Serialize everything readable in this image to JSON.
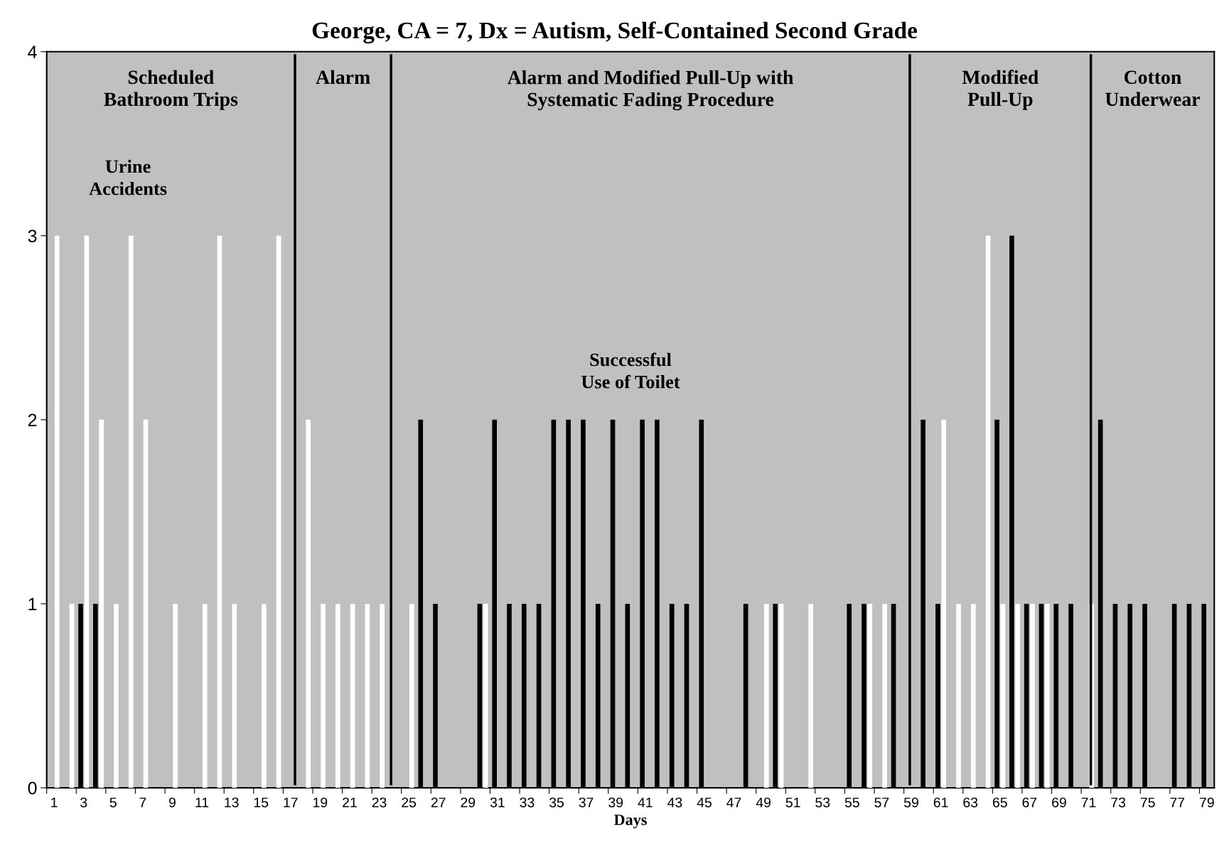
{
  "chart_data": {
    "type": "bar",
    "title": "George, CA = 7, Dx = Autism, Self-Contained Second Grade",
    "xlabel": "Days",
    "x": [
      1,
      2,
      3,
      4,
      5,
      6,
      7,
      8,
      9,
      10,
      11,
      12,
      13,
      14,
      15,
      16,
      17,
      18,
      19,
      20,
      21,
      22,
      23,
      24,
      25,
      26,
      27,
      28,
      29,
      30,
      31,
      32,
      33,
      34,
      35,
      36,
      37,
      38,
      39,
      40,
      41,
      42,
      43,
      44,
      45,
      46,
      47,
      48,
      49,
      50,
      51,
      52,
      53,
      54,
      55,
      56,
      57,
      58,
      59,
      60,
      61,
      62,
      63,
      64,
      65,
      66,
      67,
      68,
      69,
      70,
      71,
      72,
      73,
      74,
      75,
      76,
      77,
      78,
      79
    ],
    "series": [
      {
        "name": "Successful Use of Toilet",
        "color": "#000000",
        "values": [
          0,
          0,
          1,
          1,
          0,
          0,
          0,
          0,
          0,
          0,
          0,
          0,
          0,
          0,
          0,
          0,
          0,
          0,
          0,
          0,
          0,
          0,
          0,
          0,
          0,
          2,
          1,
          0,
          0,
          1,
          2,
          1,
          1,
          1,
          2,
          2,
          2,
          1,
          2,
          1,
          2,
          2,
          1,
          1,
          2,
          0,
          0,
          1,
          0,
          1,
          0,
          0,
          0,
          0,
          1,
          1,
          0,
          1,
          0,
          2,
          1,
          0,
          0,
          0,
          2,
          3,
          1,
          1,
          1,
          1,
          0,
          2,
          1,
          1,
          1,
          0,
          1,
          1,
          1
        ]
      },
      {
        "name": "Urine Accidents",
        "color": "#ffffff",
        "values": [
          3,
          1,
          3,
          2,
          1,
          3,
          2,
          0,
          1,
          0,
          1,
          3,
          1,
          0,
          1,
          3,
          0,
          2,
          1,
          1,
          1,
          1,
          1,
          0,
          1,
          0,
          0,
          0,
          0,
          1,
          0,
          0,
          0,
          0,
          0,
          0,
          0,
          0,
          0,
          0,
          0,
          0,
          0,
          0,
          0,
          0,
          0,
          0,
          1,
          1,
          0,
          1,
          0,
          0,
          0,
          1,
          1,
          0,
          0,
          0,
          2,
          1,
          1,
          3,
          1,
          1,
          1,
          1,
          0,
          0,
          1,
          0,
          0,
          0,
          0,
          0,
          0,
          0,
          0
        ]
      }
    ],
    "xlim": [
      0.5,
      79.5
    ],
    "xticks": [
      1,
      3,
      5,
      7,
      9,
      11,
      13,
      15,
      17,
      19,
      21,
      23,
      25,
      27,
      29,
      31,
      33,
      35,
      37,
      39,
      41,
      43,
      45,
      47,
      49,
      51,
      53,
      55,
      57,
      59,
      61,
      63,
      65,
      67,
      69,
      71,
      73,
      75,
      77,
      79,
      {
        "value": 0.5,
        "label": null
      },
      {
        "value": 2.5,
        "label": null
      },
      {
        "value": 4.5,
        "label": null
      },
      {
        "value": 6.5,
        "label": null
      },
      {
        "value": 8.5,
        "label": null
      },
      {
        "value": 10.5,
        "label": null
      },
      {
        "value": 12.5,
        "label": null
      },
      {
        "value": 14.5,
        "label": null
      },
      {
        "value": 16.5,
        "label": null
      },
      {
        "value": 18.5,
        "label": null
      },
      {
        "value": 20.5,
        "label": null
      },
      {
        "value": 22.5,
        "label": null
      },
      {
        "value": 24.5,
        "label": null
      },
      {
        "value": 26.5,
        "label": null
      },
      {
        "value": 28.5,
        "label": null
      },
      {
        "value": 30.5,
        "label": null
      },
      {
        "value": 32.5,
        "label": null
      },
      {
        "value": 34.5,
        "label": null
      },
      {
        "value": 36.5,
        "label": null
      },
      {
        "value": 38.5,
        "label": null
      },
      {
        "value": 40.5,
        "label": null
      },
      {
        "value": 42.5,
        "label": null
      },
      {
        "value": 44.5,
        "label": null
      },
      {
        "value": 46.5,
        "label": null
      },
      {
        "value": 48.5,
        "label": null
      },
      {
        "value": 50.5,
        "label": null
      },
      {
        "value": 52.5,
        "label": null
      },
      {
        "value": 54.5,
        "label": null
      },
      {
        "value": 56.5,
        "label": null
      },
      {
        "value": 58.5,
        "label": null
      },
      {
        "value": 60.5,
        "label": null
      },
      {
        "value": 62.5,
        "label": null
      },
      {
        "value": 64.5,
        "label": null
      },
      {
        "value": 66.5,
        "label": null
      },
      {
        "value": 68.5,
        "label": null
      },
      {
        "value": 70.5,
        "label": null
      },
      {
        "value": 72.5,
        "label": null
      },
      {
        "value": 74.5,
        "label": null
      },
      {
        "value": 76.5,
        "label": null
      },
      {
        "value": 78.5,
        "label": null
      }
    ],
    "ylim": [
      0,
      4
    ],
    "yticks": [
      0,
      1,
      2,
      3,
      4
    ],
    "ref_lines": [
      {
        "axis": "x",
        "value": 17.3,
        "color": "#000000"
      },
      {
        "axis": "x",
        "value": 23.8,
        "color": "#000000"
      },
      {
        "axis": "x",
        "value": 58.9,
        "color": "#000000"
      },
      {
        "axis": "x",
        "value": 71.15,
        "color": "#000000"
      }
    ],
    "bands": [
      {
        "axis": "x",
        "from": 0.5,
        "to": 17.3,
        "label": "Scheduled\nBathroom Trips",
        "color": "#c0c0c0"
      },
      {
        "axis": "x",
        "from": 17.3,
        "to": 23.8,
        "label": "Alarm",
        "color": "#c0c0c0"
      },
      {
        "axis": "x",
        "from": 23.8,
        "to": 58.9,
        "label": "Alarm and Modified Pull-Up with\nSystematic Fading Procedure",
        "color": "#c0c0c0"
      },
      {
        "axis": "x",
        "from": 58.9,
        "to": 71.15,
        "label": "Modified\nPull-Up",
        "color": "#c0c0c0"
      },
      {
        "axis": "x",
        "from": 71.15,
        "to": 79.5,
        "label": "Cotton\nUnderwear",
        "color": "#c0c0c0"
      }
    ],
    "grid": false,
    "legend": false
  }
}
